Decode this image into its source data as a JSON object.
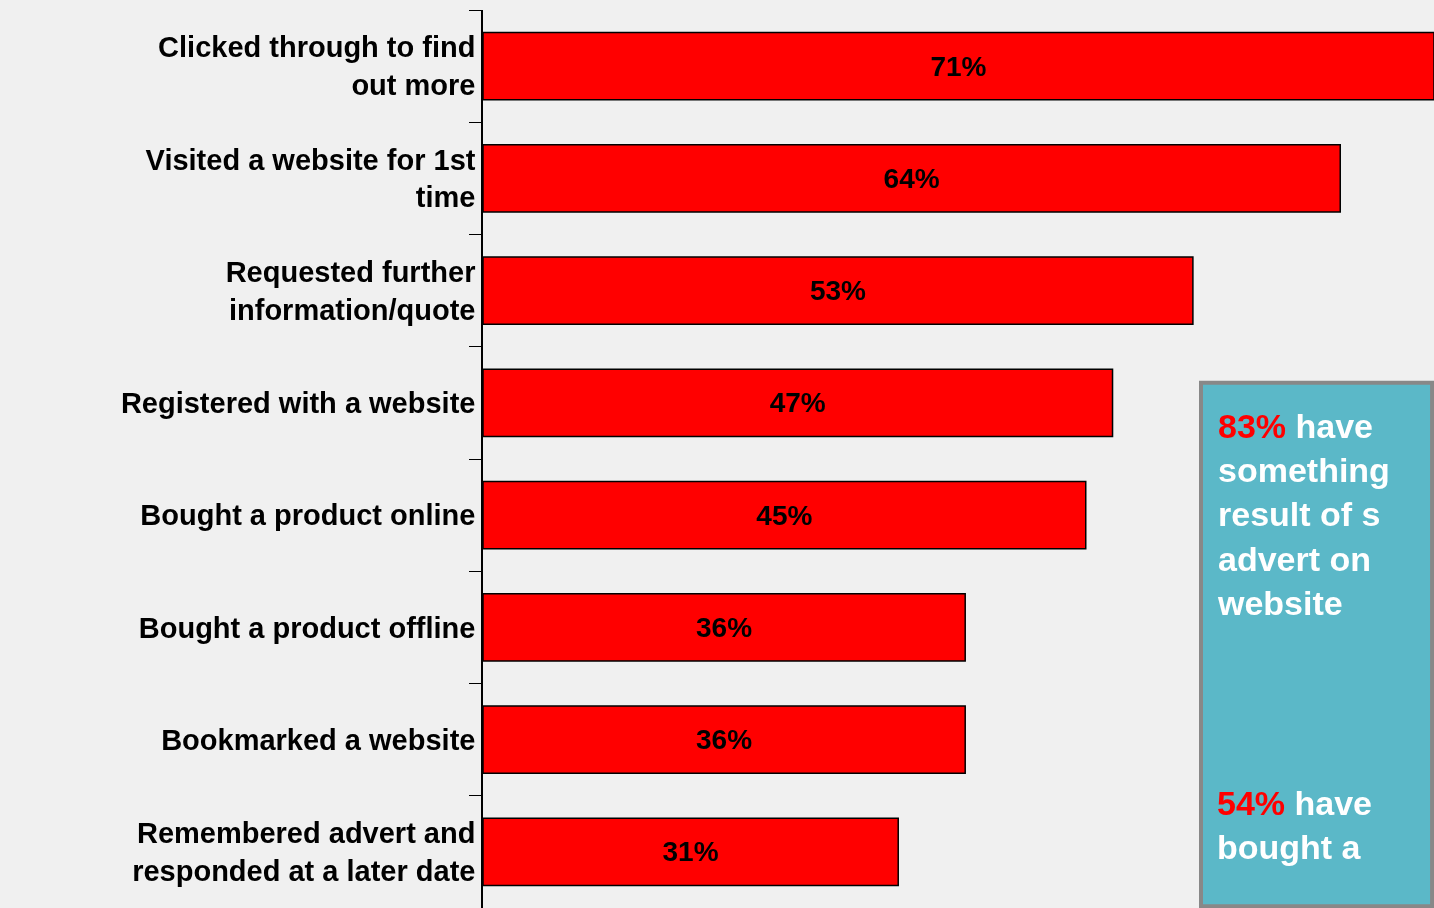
{
  "chart_data": {
    "type": "bar",
    "orientation": "horizontal",
    "categories": [
      "Clicked through to find out more",
      "Visited a website for 1st time",
      "Requested further information/quote",
      "Registered with a website",
      "Bought a product online",
      "Bought a product offline",
      "Bookmarked a website",
      "Remembered advert and responded at a later date"
    ],
    "values": [
      71,
      64,
      53,
      47,
      45,
      36,
      36,
      31
    ],
    "value_labels": [
      "71%",
      "64%",
      "53%",
      "47%",
      "45%",
      "36%",
      "36%",
      "31%"
    ],
    "color": "#ff0000",
    "annotations": [
      "83% have\nsomething\nresult of s\nadvert on\nwebsite",
      "54% have\nbought a"
    ]
  }
}
